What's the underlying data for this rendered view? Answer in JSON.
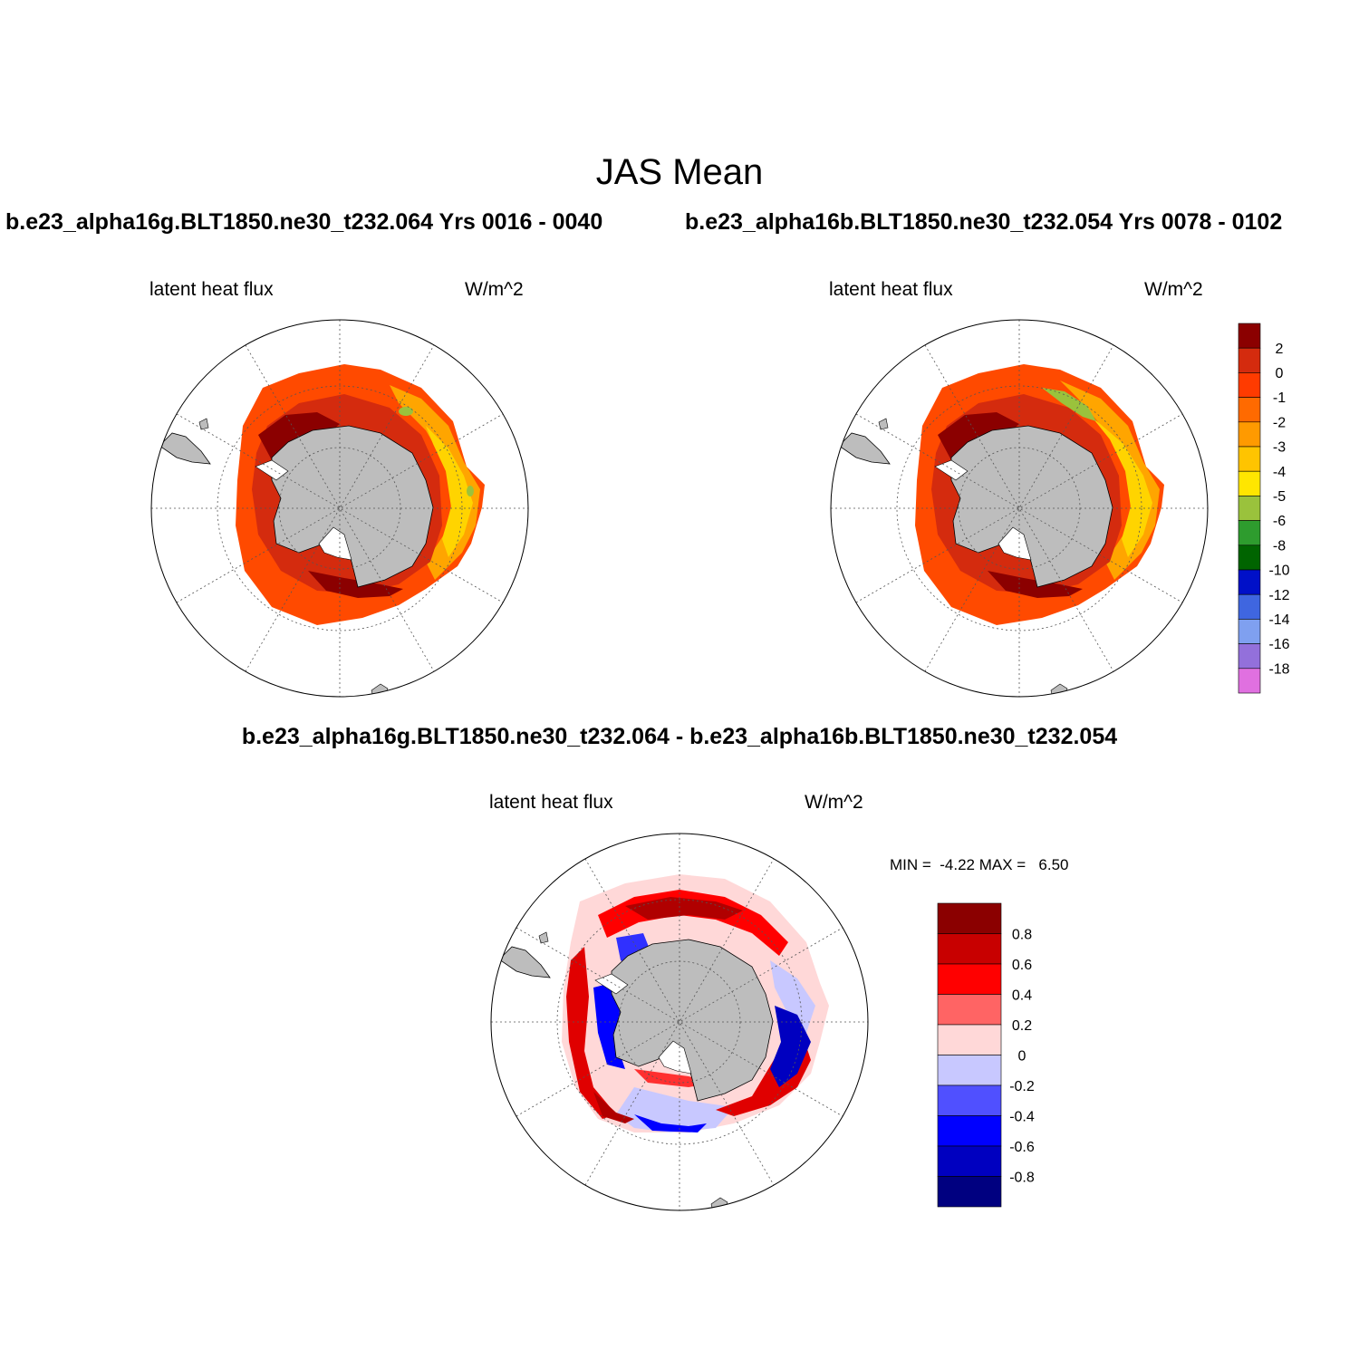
{
  "title": "JAS Mean",
  "panels": [
    {
      "case": "b.e23_alpha16g.BLT1850.ne30_t232.064  Yrs 0016 - 0040",
      "variable": "latent heat flux",
      "units": "W/m^2"
    },
    {
      "case": "b.e23_alpha16b.BLT1850.ne30_t232.054  Yrs 0078 - 0102",
      "variable": "latent heat flux",
      "units": "W/m^2"
    }
  ],
  "difference": {
    "title": "b.e23_alpha16g.BLT1850.ne30_t232.064 - b.e23_alpha16b.BLT1850.ne30_t232.054",
    "variable": "latent heat flux",
    "units": "W/m^2",
    "minmax": "MIN =  -4.22 MAX =   6.50"
  },
  "colorbar_main": {
    "labels": [
      "2",
      "0",
      "-1",
      "-2",
      "-3",
      "-4",
      "-5",
      "-6",
      "-8",
      "-10",
      "-12",
      "-14",
      "-16",
      "-18"
    ],
    "colors": [
      "#8b0000",
      "#d42b0e",
      "#ff3b00",
      "#ff6a00",
      "#ff9a00",
      "#ffc400",
      "#ffe600",
      "#9ac23c",
      "#2e9c2e",
      "#006400",
      "#0010c8",
      "#3f66e0",
      "#7fa0f0",
      "#9370db",
      "#e070e0"
    ]
  },
  "colorbar_diff": {
    "labels": [
      "0.8",
      "0.6",
      "0.4",
      "0.2",
      "0",
      "-0.2",
      "-0.4",
      "-0.6",
      "-0.8"
    ],
    "colors": [
      "#8b0000",
      "#c80000",
      "#ff0000",
      "#ff6464",
      "#ffd8d8",
      "#c8c8ff",
      "#5050ff",
      "#0000ff",
      "#0000c0",
      "#000080"
    ]
  },
  "map_colors": {
    "land": "#bdbdbd",
    "outer_ring": "#ff4000",
    "mid_ring": "#ff8000",
    "inner_ring": "#dc2a10",
    "hotspot": "#8b0000",
    "warm_edge": "#ffc000",
    "diff_red": "#ff0000",
    "diff_dark_red": "#b00000",
    "diff_blue": "#0000ff",
    "diff_light_blue": "#c8c8ff",
    "diff_light_red": "#ffd0d0"
  }
}
